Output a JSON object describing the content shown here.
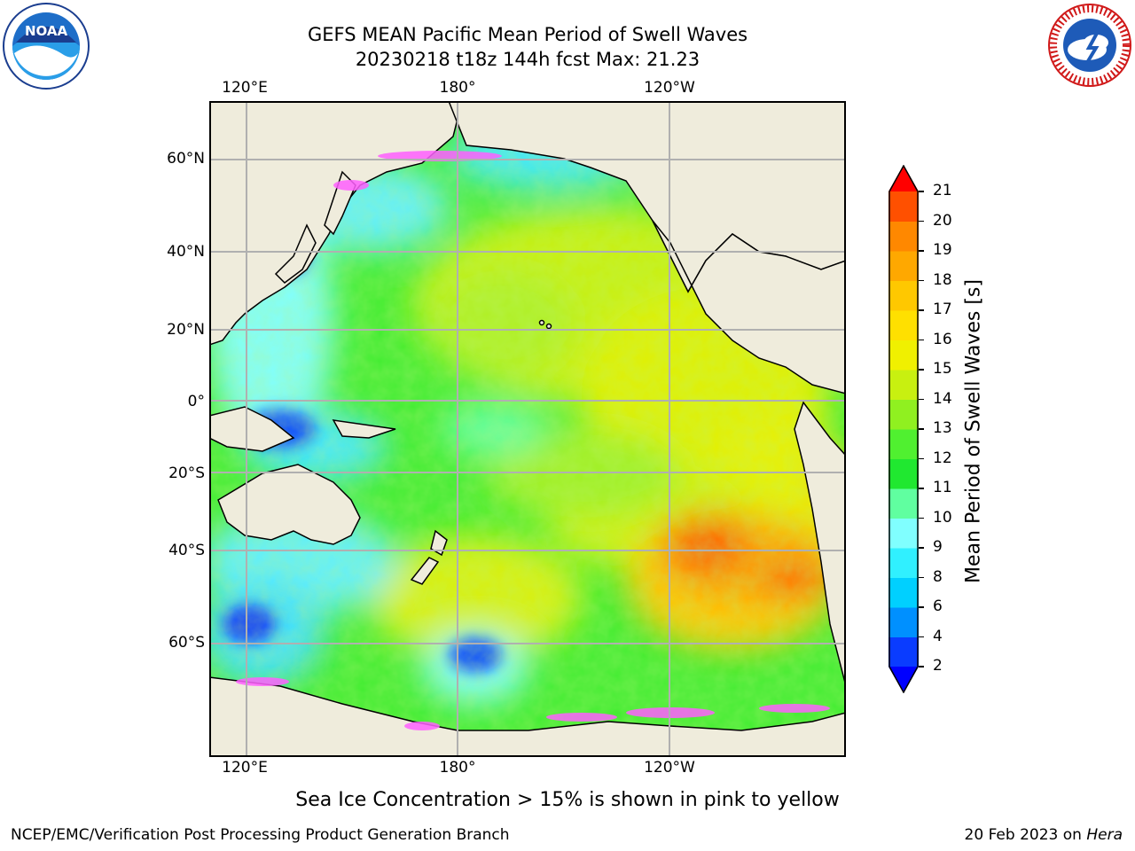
{
  "title": {
    "line1": "GEFS MEAN Pacific Mean Period of Swell Waves",
    "line2": "20230218 t18z 144h fcst   Max: 21.23"
  },
  "map": {
    "top_lon_labels": [
      "120°E",
      "180°",
      "120°W"
    ],
    "bottom_lon_labels": [
      "120°E",
      "180°",
      "120°W"
    ],
    "lat_labels": [
      "60°N",
      "40°N",
      "20°N",
      "0°",
      "20°S",
      "40°S",
      "60°S"
    ],
    "colors": {
      "land": "#efecdc",
      "grid": "#b0b0b0"
    }
  },
  "colorbar": {
    "label": "Mean Period of Swell Waves [s]",
    "ticks": [
      "2",
      "4",
      "6",
      "8",
      "9",
      "10",
      "11",
      "12",
      "13",
      "14",
      "15",
      "16",
      "17",
      "18",
      "19",
      "20",
      "21"
    ],
    "colors": [
      "#0a3cff",
      "#0090ff",
      "#00d0ff",
      "#30f0ff",
      "#80ffff",
      "#60ffa0",
      "#20e830",
      "#50f030",
      "#90f020",
      "#c8f010",
      "#f0f000",
      "#ffe000",
      "#ffc800",
      "#ffa800",
      "#ff8800",
      "#ff5000",
      "#ff2000"
    ],
    "under_color": "#0000ff",
    "over_color": "#ff0000"
  },
  "note": "Sea Ice Concentration > 15% is shown in pink to yellow",
  "footer": {
    "left": "NCEP/EMC/Verification Post Processing Product Generation Branch",
    "right_date": "20 Feb 2023 on ",
    "right_host": "Hera"
  },
  "logos": {
    "left_text": "NOAA",
    "right_text": "NATIONAL WEATHER SERVICE"
  }
}
